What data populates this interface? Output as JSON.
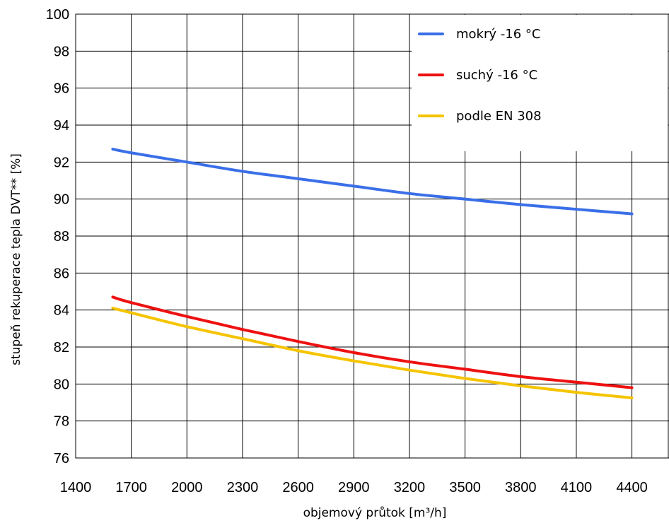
{
  "chart_data": {
    "type": "line",
    "title": "",
    "xlabel": "objemový průtok  [m³/h]",
    "ylabel": "stupeň rekuperace tepla DVT** [%]",
    "xlim": [
      1400,
      4600
    ],
    "ylim": [
      76,
      100
    ],
    "xticks": [
      1400,
      1700,
      2000,
      2300,
      2600,
      2900,
      3200,
      3500,
      3800,
      4100,
      4400
    ],
    "yticks": [
      76,
      78,
      80,
      82,
      84,
      86,
      88,
      90,
      92,
      94,
      96,
      98,
      100
    ],
    "grid": true,
    "legend_position": "top-right",
    "series": [
      {
        "name": "mokrý -16 °C",
        "color": "#3a6fe8",
        "x": [
          1600,
          1700,
          2000,
          2300,
          2600,
          2900,
          3200,
          3500,
          3800,
          4100,
          4400
        ],
        "y": [
          92.7,
          92.5,
          92.0,
          91.5,
          91.1,
          90.7,
          90.3,
          90.0,
          89.7,
          89.45,
          89.2
        ]
      },
      {
        "name": "suchý -16 °C",
        "color": "#ee1111",
        "x": [
          1600,
          1700,
          2000,
          2300,
          2600,
          2900,
          3200,
          3500,
          3800,
          4100,
          4400
        ],
        "y": [
          84.7,
          84.4,
          83.65,
          82.95,
          82.3,
          81.7,
          81.2,
          80.8,
          80.4,
          80.1,
          79.8
        ]
      },
      {
        "name": "podle EN 308",
        "color": "#f5c400",
        "x": [
          1600,
          1700,
          2000,
          2300,
          2600,
          2900,
          3200,
          3500,
          3800,
          4100,
          4400
        ],
        "y": [
          84.1,
          83.85,
          83.1,
          82.45,
          81.8,
          81.25,
          80.75,
          80.3,
          79.9,
          79.55,
          79.25
        ]
      }
    ]
  }
}
